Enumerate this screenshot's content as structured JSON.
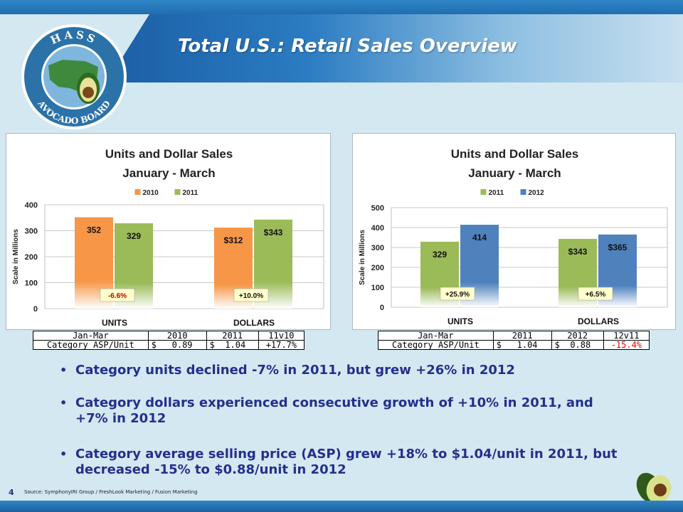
{
  "slide": {
    "title": "Total U.S.: Retail Sales Overview",
    "page_number": "4",
    "source": "Source: SymphonyIRI Group / FreshLook Marketing / Fusion Marketing",
    "logo_text_top": "HASS",
    "logo_text_bottom": "AVOCADO BOARD"
  },
  "colors": {
    "orange": "#f79646",
    "green": "#9bbb59",
    "blue": "#4f81bd",
    "text_navy": "#232f8c",
    "negative_red": "#e60000"
  },
  "chart_data": [
    {
      "type": "bar",
      "title": "Units and Dollar Sales",
      "subtitle": "January - March",
      "ylabel": "Scale in Millions",
      "ylim": [
        0,
        400
      ],
      "yticks": [
        "0",
        "100",
        "200",
        "300",
        "400"
      ],
      "categories": [
        "UNITS",
        "DOLLARS"
      ],
      "series": [
        {
          "name": "2010",
          "values": [
            352,
            312
          ],
          "labels": [
            "352",
            "$312"
          ]
        },
        {
          "name": "2011",
          "values": [
            329,
            343
          ],
          "labels": [
            "329",
            "$343"
          ]
        }
      ],
      "change_labels": [
        "-6.6%",
        "+10.0%"
      ],
      "grid": true,
      "legend": "top-center"
    },
    {
      "type": "bar",
      "title": "Units and Dollar Sales",
      "subtitle": "January - March",
      "ylabel": "Scale in Millions",
      "ylim": [
        0,
        500
      ],
      "yticks": [
        "0",
        "100",
        "200",
        "300",
        "400",
        "500"
      ],
      "categories": [
        "UNITS",
        "DOLLARS"
      ],
      "series": [
        {
          "name": "2011",
          "values": [
            329,
            343
          ],
          "labels": [
            "329",
            "$343"
          ]
        },
        {
          "name": "2012",
          "values": [
            414,
            365
          ],
          "labels": [
            "414",
            "$365"
          ]
        }
      ],
      "change_labels": [
        "+25.9%",
        "+6.5%"
      ],
      "grid": true,
      "legend": "top-center"
    }
  ],
  "asp_tables": [
    {
      "header": [
        "Jan-Mar",
        "2010",
        "2011",
        "11v10"
      ],
      "row": [
        "Category ASP/Unit",
        "$   0.89",
        "$  1.04",
        "+17.7%"
      ]
    },
    {
      "header": [
        "Jan-Mar",
        "2011",
        "2012",
        "12v11"
      ],
      "row": [
        "Category ASP/Unit",
        "$   1.04",
        "$  0.88",
        "-15.4%"
      ]
    }
  ],
  "bullets": [
    "Category units declined -7% in 2011, but grew +26% in 2012",
    "Category dollars experienced consecutive growth of +10% in 2011, and +7% in 2012",
    "Category average selling price (ASP) grew +18% to $1.04/unit in 2011, but decreased -15% to $0.88/unit in 2012"
  ]
}
